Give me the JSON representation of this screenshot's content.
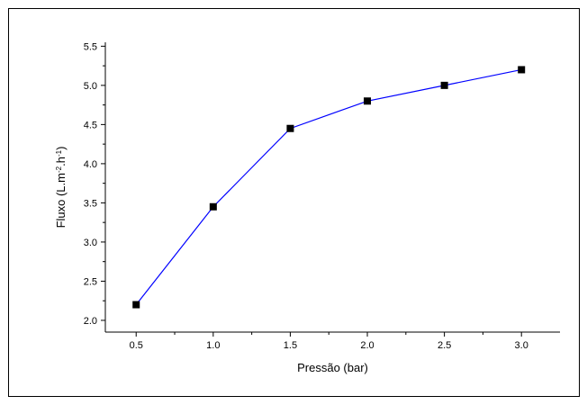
{
  "chart_data": {
    "type": "line",
    "title": "",
    "xlabel": "Pressão (bar)",
    "ylabel": {
      "base": "Fluxo (L.m",
      "exp1": "-2",
      "mid": ".h",
      "exp2": "-1",
      "end": ")"
    },
    "xlim": [
      0.3,
      3.25
    ],
    "ylim": [
      1.85,
      5.55
    ],
    "x_ticks": [
      "0.5",
      "1.0",
      "1.5",
      "2.0",
      "2.5",
      "3.0"
    ],
    "y_ticks": [
      "2.0",
      "2.5",
      "3.0",
      "3.5",
      "4.0",
      "4.5",
      "5.0",
      "5.5"
    ],
    "x_tick_values": [
      0.5,
      1.0,
      1.5,
      2.0,
      2.5,
      3.0
    ],
    "y_tick_values": [
      2.0,
      2.5,
      3.0,
      3.5,
      4.0,
      4.5,
      5.0,
      5.5
    ],
    "grid": false,
    "legend": "none",
    "series": [
      {
        "x": [
          0.5,
          1.0,
          1.5,
          2.0,
          2.5,
          3.0
        ],
        "y": [
          2.2,
          3.45,
          4.45,
          4.8,
          5.0,
          5.2
        ],
        "line_color": "#0000ff",
        "marker": "square",
        "marker_color": "#000000"
      }
    ]
  }
}
